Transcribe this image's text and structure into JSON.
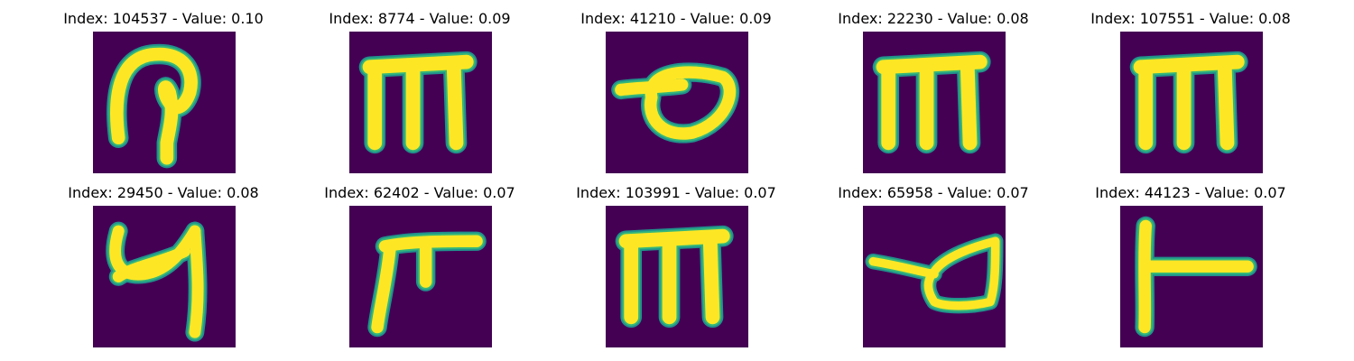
{
  "figure": {
    "panels": [
      {
        "index": "104537",
        "value": "0.10",
        "title": "Index: 104537 - Value: 0.10",
        "glyph": "loop-hook"
      },
      {
        "index": "8774",
        "value": "0.09",
        "title": "Index: 8774 - Value: 0.09",
        "glyph": "comb-m"
      },
      {
        "index": "41210",
        "value": "0.09",
        "title": "Index: 41210 - Value: 0.09",
        "glyph": "loop-tail"
      },
      {
        "index": "22230",
        "value": "0.08",
        "title": "Index: 22230 - Value: 0.08",
        "glyph": "comb-m"
      },
      {
        "index": "107551",
        "value": "0.08",
        "title": "Index: 107551 - Value: 0.08",
        "glyph": "comb-m"
      },
      {
        "index": "29450",
        "value": "0.08",
        "title": "Index: 29450 - Value: 0.08",
        "glyph": "curve-y"
      },
      {
        "index": "62402",
        "value": "0.07",
        "title": "Index: 62402 - Value: 0.07",
        "glyph": "gamma"
      },
      {
        "index": "103991",
        "value": "0.07",
        "title": "Index: 103991 - Value: 0.07",
        "glyph": "comb-m"
      },
      {
        "index": "65958",
        "value": "0.07",
        "title": "Index: 65958 - Value: 0.07",
        "glyph": "loop-tail-thin"
      },
      {
        "index": "44123",
        "value": "0.07",
        "title": "Index: 44123 - Value: 0.07",
        "glyph": "t-bar"
      }
    ],
    "colors": {
      "background": "#440154",
      "stroke_core": "#fde725",
      "stroke_edge": "#35b779",
      "stroke_halo": "#21918c"
    }
  }
}
